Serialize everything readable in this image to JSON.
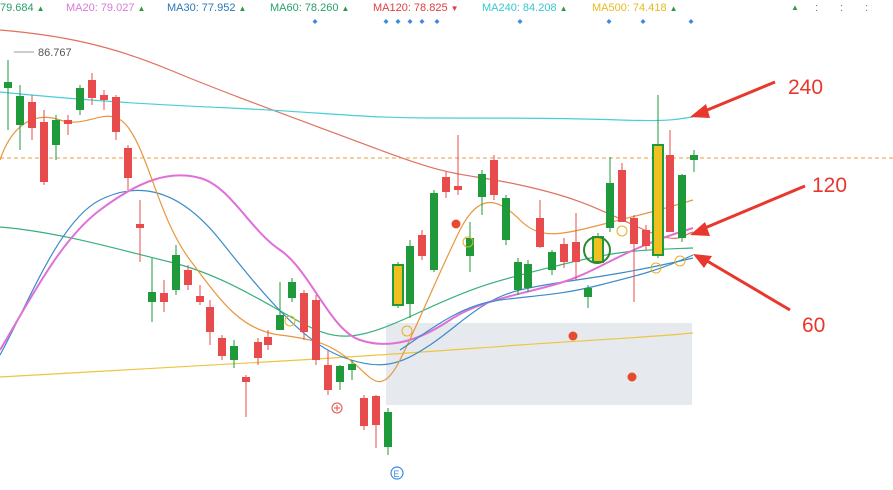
{
  "legend": {
    "ma_first_value": "79.684",
    "items": [
      {
        "name": "MA20:",
        "value": "79.027",
        "dir": "▲",
        "color": "#d77ad9",
        "dir_color": "#2e9b3c"
      },
      {
        "name": "MA30:",
        "value": "77.952",
        "dir": "▲",
        "color": "#2a78b8",
        "dir_color": "#2e9b3c"
      },
      {
        "name": "MA60:",
        "value": "78.260",
        "dir": "▲",
        "color": "#2aa06a",
        "dir_color": "#2e9b3c"
      },
      {
        "name": "MA120:",
        "value": "78.825",
        "dir": "▼",
        "color": "#e04040",
        "dir_color": "#e04040"
      },
      {
        "name": "MA240:",
        "value": "84.208",
        "dir": "▲",
        "color": "#37c7cf",
        "dir_color": "#2e9b3c"
      },
      {
        "name": "MA500:",
        "value": "74.418",
        "dir": "▲",
        "color": "#e8b91e",
        "dir_color": "#2e9b3c"
      }
    ],
    "first_color": "#2aa06a",
    "first_dir": "▲",
    "trailing_dots": [
      ": ",
      ": ",
      ": "
    ]
  },
  "chart_data": {
    "type": "candlestick",
    "high_label": "86.767",
    "annotations": [
      "240",
      "120",
      "60"
    ],
    "colors": {
      "up": "#e84b4b",
      "down": "#1f9a3b",
      "ma5": "#e8963c",
      "ma20": "#e070d8",
      "ma30": "#3a8bc8",
      "ma60": "#36b07a",
      "ma120": "#e07060",
      "ma240": "#45cfd6",
      "ma500": "#ecc640",
      "highlight": "#f0c020",
      "arrow": "#e8372c",
      "price_line": "#e8a040",
      "box": "#e6e9ee"
    }
  }
}
